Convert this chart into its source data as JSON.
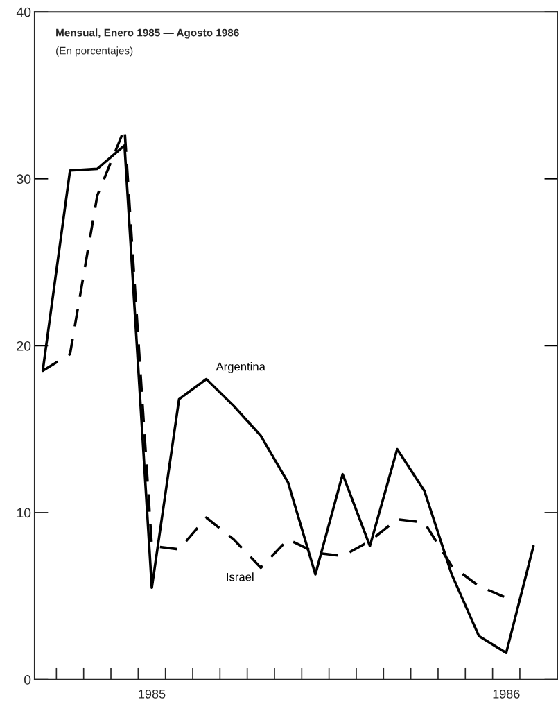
{
  "chart_data": {
    "type": "line",
    "title": "Mensual, Enero 1985 — Agosto 1986",
    "subtitle": "(En porcentajes)",
    "categories": [
      null,
      null,
      null,
      null,
      "1985",
      null,
      null,
      null,
      null,
      null,
      null,
      null,
      null,
      null,
      null,
      null,
      null,
      "1986",
      null
    ],
    "series": [
      {
        "name": "Argentina",
        "color": "#000000",
        "line_style": "solid",
        "values": [
          18.5,
          30.5,
          30.6,
          32,
          5.5,
          16.8,
          18,
          16.4,
          14.6,
          11.8,
          6.3,
          12.3,
          8.0,
          13.8,
          11.3,
          6.3,
          2.6,
          1.6,
          8.0
        ]
      },
      {
        "name": "Israel",
        "color": "#000000",
        "line_style": "dashed",
        "values": [
          18.5,
          19.5,
          29,
          33,
          8.0,
          7.8,
          9.7,
          8.4,
          6.7,
          8.4,
          7.6,
          7.4,
          8.3,
          9.6,
          9.4,
          6.8,
          5.6,
          4.9,
          null
        ]
      }
    ],
    "ylim": [
      0,
      40
    ],
    "yticks": [
      0,
      10,
      20,
      30,
      40
    ],
    "grid": false,
    "legend": false,
    "marker": "none"
  }
}
